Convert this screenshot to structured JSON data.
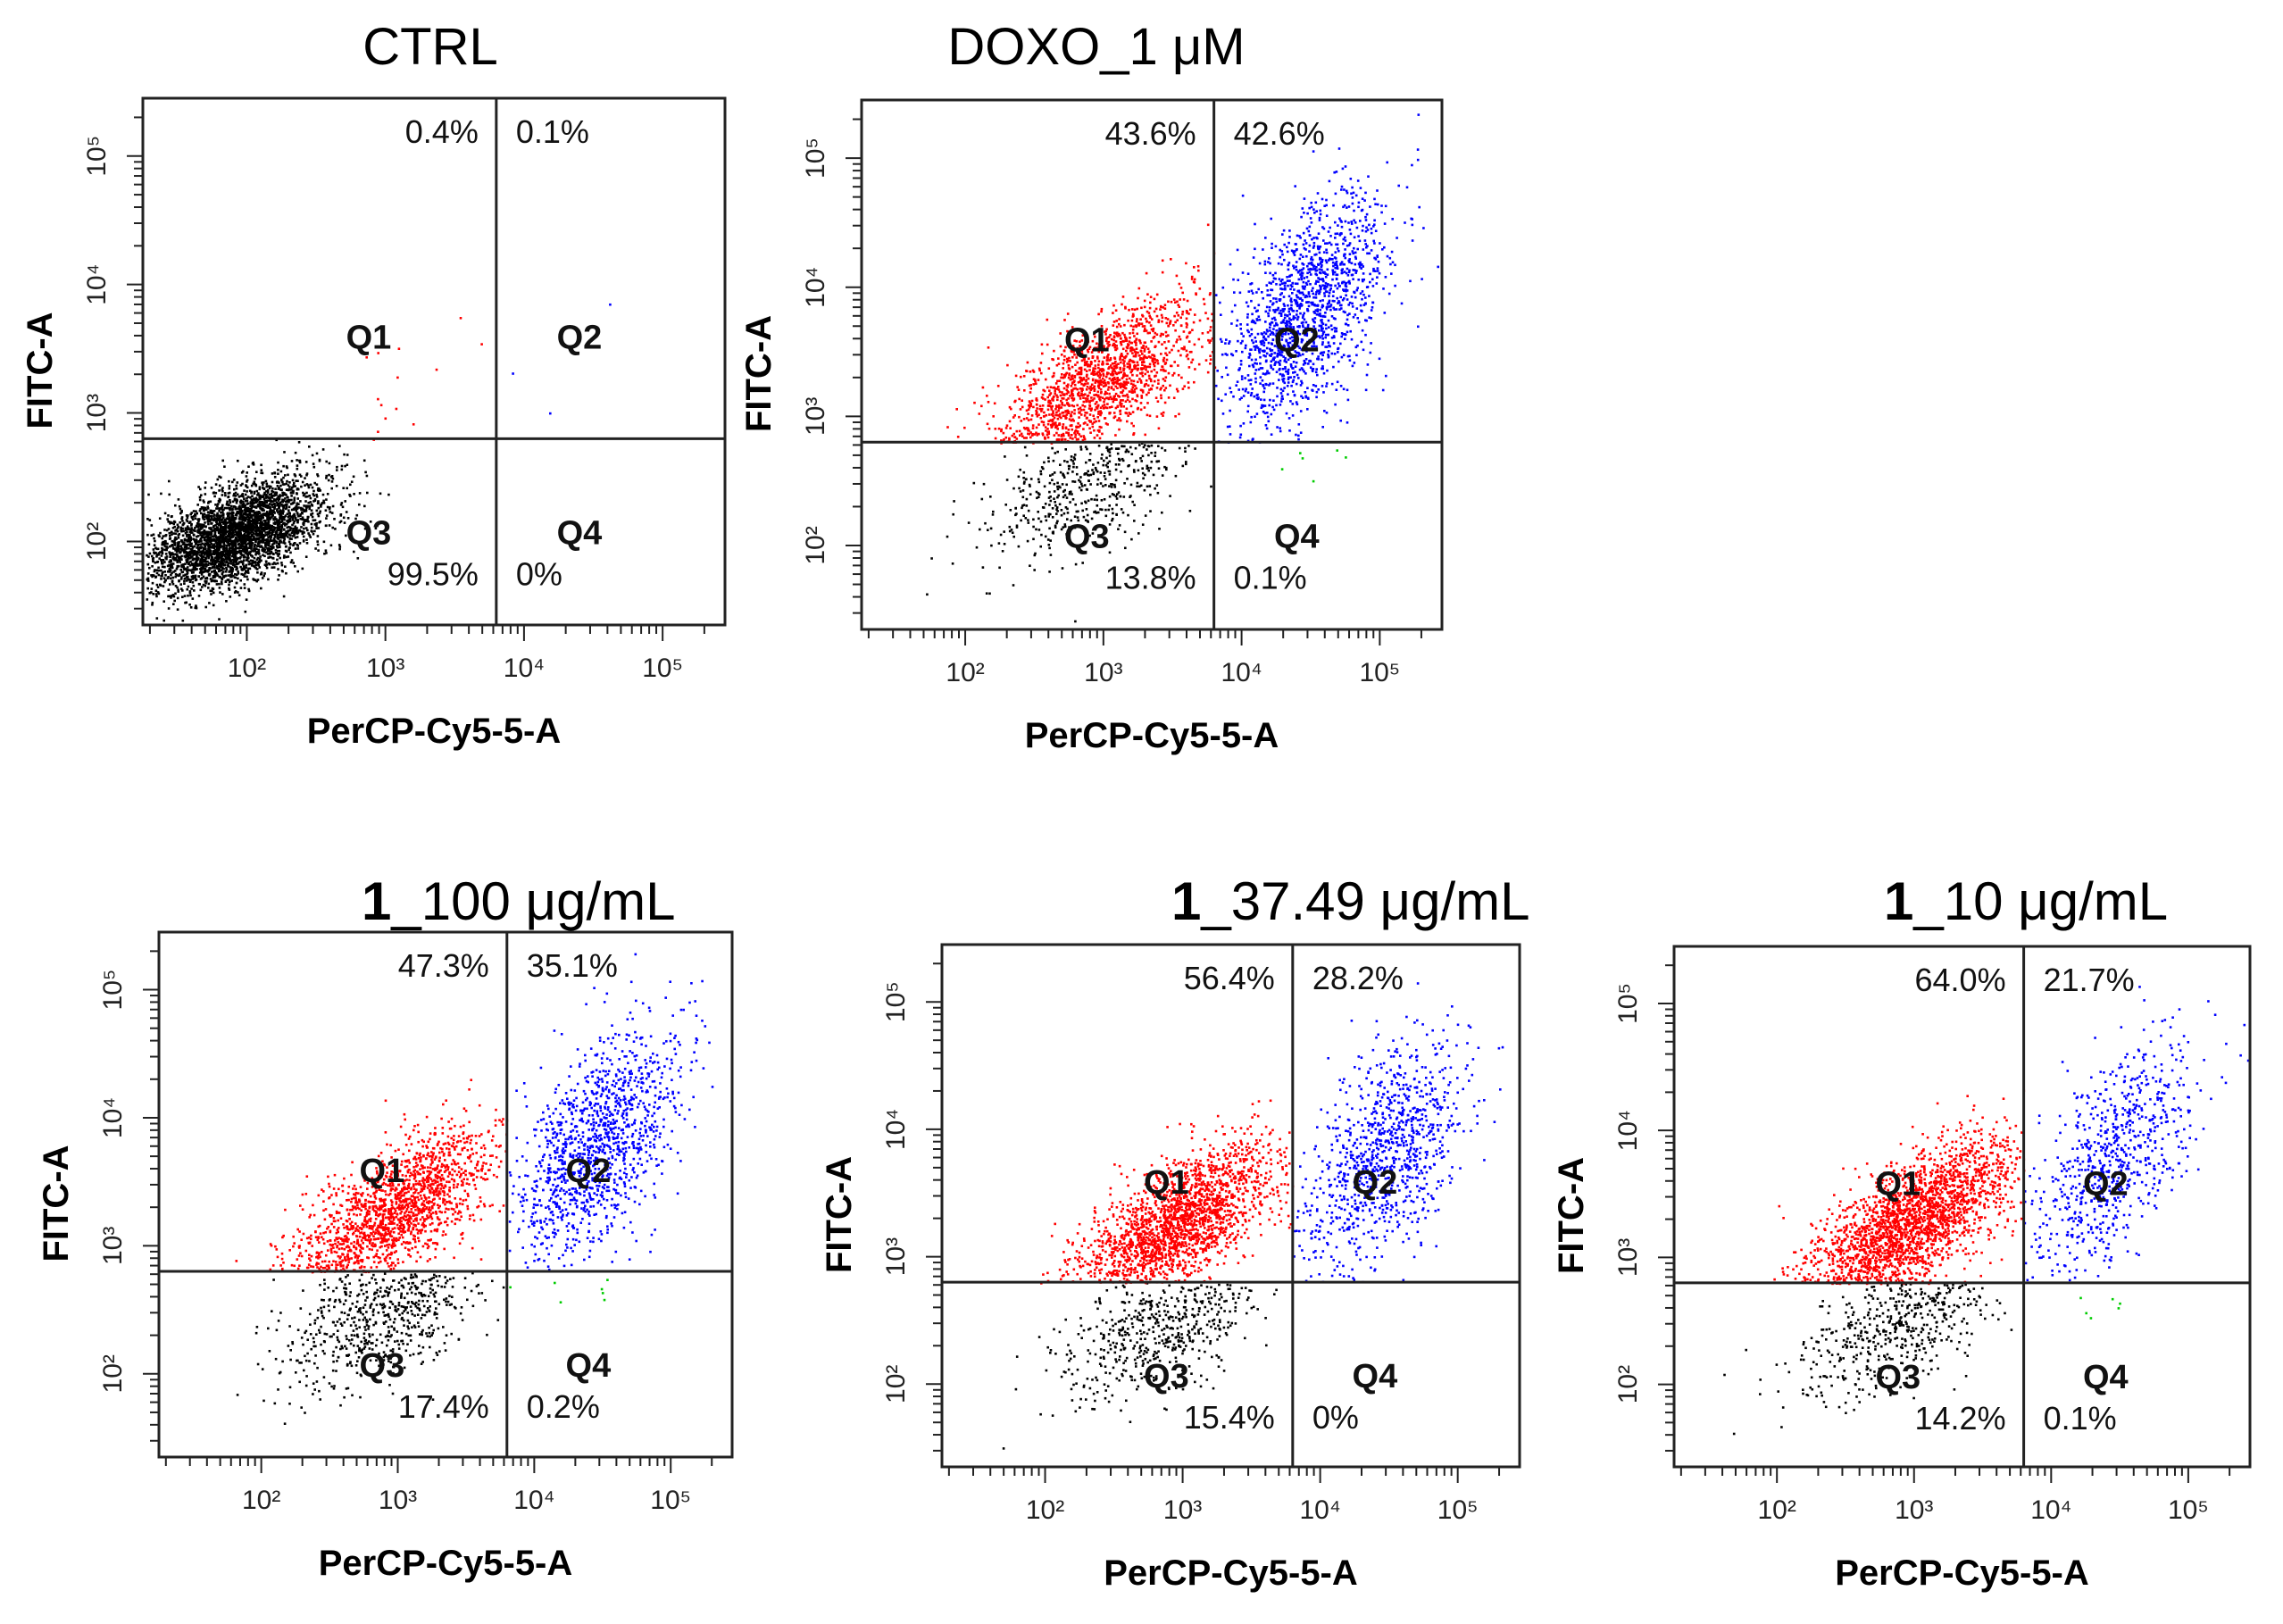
{
  "figure": {
    "x_axis_label": "PerCP-Cy5-5-A",
    "y_axis_label": "FITC-A",
    "quadrant_labels": [
      "Q1",
      "Q2",
      "Q3",
      "Q4"
    ],
    "tick_labels": [
      "10²",
      "10³",
      "10⁴",
      "10⁵"
    ]
  },
  "chart_data": [
    {
      "type": "scatter",
      "title": "CTRL",
      "title_prefix": "",
      "xlabel": "PerCP-Cy5-5-A",
      "ylabel": "FITC-A",
      "xscale": "log",
      "yscale": "log",
      "xlim": [
        1.25,
        5.45
      ],
      "ylim": [
        1.35,
        5.45
      ],
      "gate": {
        "x": 3.8,
        "y": 2.8
      },
      "quadrants": {
        "Q1": "0.4%",
        "Q2": "0.1%",
        "Q3": "99.5%",
        "Q4": "0%"
      },
      "series": [
        {
          "name": "Q3",
          "color": "#000000"
        },
        {
          "name": "Q1",
          "color": "#ff0000"
        },
        {
          "name": "Q2",
          "color": "#0000ff"
        },
        {
          "name": "Q4",
          "color": "#00cc00"
        }
      ]
    },
    {
      "type": "scatter",
      "title": "DOXO_1 μM",
      "title_prefix": "",
      "xlabel": "PerCP-Cy5-5-A",
      "ylabel": "FITC-A",
      "xscale": "log",
      "yscale": "log",
      "xlim": [
        1.25,
        5.45
      ],
      "ylim": [
        1.35,
        5.45
      ],
      "gate": {
        "x": 3.8,
        "y": 2.8
      },
      "quadrants": {
        "Q1": "43.6%",
        "Q2": "42.6%",
        "Q3": "13.8%",
        "Q4": "0.1%"
      },
      "series": [
        {
          "name": "Q3",
          "color": "#000000"
        },
        {
          "name": "Q1",
          "color": "#ff0000"
        },
        {
          "name": "Q2",
          "color": "#0000ff"
        },
        {
          "name": "Q4",
          "color": "#00cc00"
        }
      ]
    },
    {
      "type": "scatter",
      "title": "_100 μg/mL",
      "title_prefix": "1",
      "xlabel": "PerCP-Cy5-5-A",
      "ylabel": "FITC-A",
      "xscale": "log",
      "yscale": "log",
      "xlim": [
        1.25,
        5.45
      ],
      "ylim": [
        1.35,
        5.45
      ],
      "gate": {
        "x": 3.8,
        "y": 2.8
      },
      "quadrants": {
        "Q1": "47.3%",
        "Q2": "35.1%",
        "Q3": "17.4%",
        "Q4": "0.2%"
      },
      "series": [
        {
          "name": "Q3",
          "color": "#000000"
        },
        {
          "name": "Q1",
          "color": "#ff0000"
        },
        {
          "name": "Q2",
          "color": "#0000ff"
        },
        {
          "name": "Q4",
          "color": "#00cc00"
        }
      ]
    },
    {
      "type": "scatter",
      "title": "_37.49 μg/mL",
      "title_prefix": "1",
      "xlabel": "PerCP-Cy5-5-A",
      "ylabel": "FITC-A",
      "xscale": "log",
      "yscale": "log",
      "xlim": [
        1.25,
        5.45
      ],
      "ylim": [
        1.35,
        5.45
      ],
      "gate": {
        "x": 3.8,
        "y": 2.8
      },
      "quadrants": {
        "Q1": "56.4%",
        "Q2": "28.2%",
        "Q3": "15.4%",
        "Q4": "0%"
      },
      "series": [
        {
          "name": "Q3",
          "color": "#000000"
        },
        {
          "name": "Q1",
          "color": "#ff0000"
        },
        {
          "name": "Q2",
          "color": "#0000ff"
        },
        {
          "name": "Q4",
          "color": "#00cc00"
        }
      ]
    },
    {
      "type": "scatter",
      "title": "_10 μg/mL",
      "title_prefix": "1",
      "xlabel": "PerCP-Cy5-5-A",
      "ylabel": "FITC-A",
      "xscale": "log",
      "yscale": "log",
      "xlim": [
        1.25,
        5.45
      ],
      "ylim": [
        1.35,
        5.45
      ],
      "gate": {
        "x": 3.8,
        "y": 2.8
      },
      "quadrants": {
        "Q1": "64.0%",
        "Q2": "21.7%",
        "Q3": "14.2%",
        "Q4": "0.1%"
      },
      "series": [
        {
          "name": "Q3",
          "color": "#000000"
        },
        {
          "name": "Q1",
          "color": "#ff0000"
        },
        {
          "name": "Q2",
          "color": "#0000ff"
        },
        {
          "name": "Q4",
          "color": "#00cc00"
        }
      ]
    }
  ]
}
